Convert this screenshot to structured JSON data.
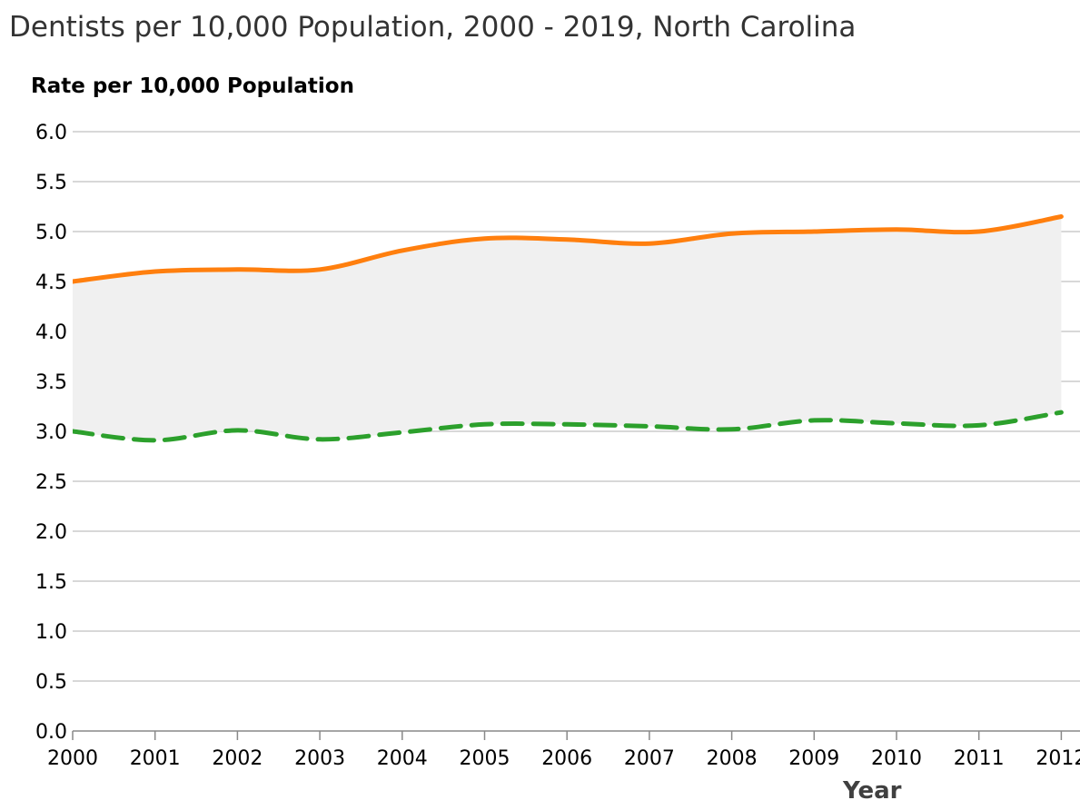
{
  "chart_data": {
    "type": "area",
    "title": "Dentists per 10,000 Population, 2000 - 2019, North Carolina",
    "ylabel": "Rate per 10,000 Population",
    "xlabel": "Year",
    "ylim": [
      0,
      6.0
    ],
    "yticks": [
      "0.0",
      "0.5",
      "1.0",
      "1.5",
      "2.0",
      "2.5",
      "3.0",
      "3.5",
      "4.0",
      "4.5",
      "5.0",
      "5.5",
      "6.0"
    ],
    "x": [
      "2000",
      "2001",
      "2002",
      "2003",
      "2004",
      "2005",
      "2006",
      "2007",
      "2008",
      "2009",
      "2010",
      "2011",
      "2012"
    ],
    "grid": true,
    "series": [
      {
        "values": [
          4.5,
          4.6,
          4.62,
          4.62,
          4.81,
          4.93,
          4.92,
          4.88,
          4.98,
          5.0,
          5.02,
          5.0,
          5.15
        ],
        "color": "#ff7f0e",
        "style": "solid"
      },
      {
        "values": [
          3.0,
          2.91,
          3.01,
          2.92,
          2.99,
          3.07,
          3.07,
          3.05,
          3.02,
          3.11,
          3.08,
          3.06,
          3.19
        ],
        "color": "#2ca02c",
        "style": "dashed"
      }
    ],
    "band_fill": "#f0f0f0"
  }
}
